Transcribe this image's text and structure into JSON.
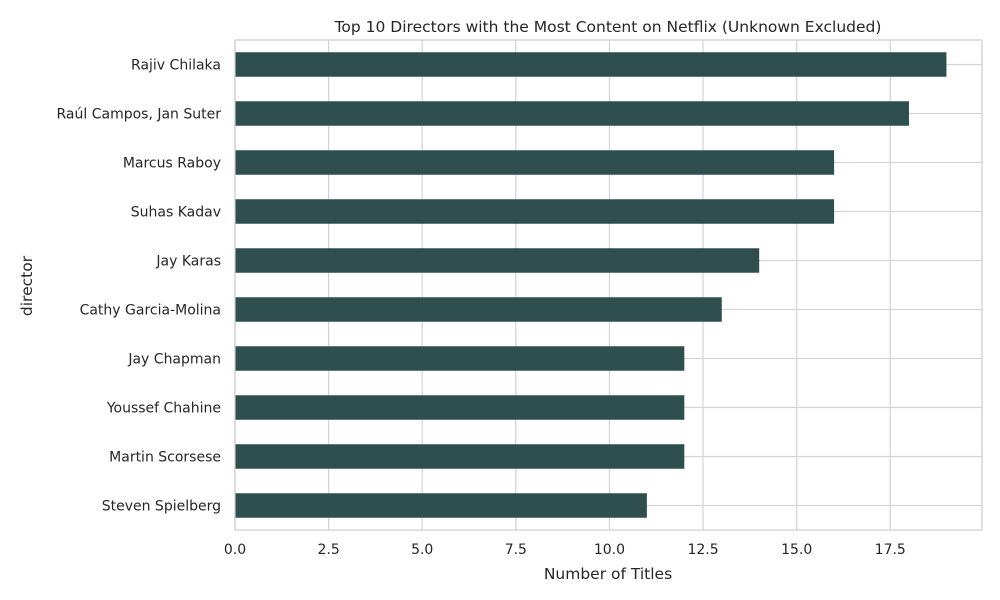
{
  "chart_data": {
    "type": "bar",
    "orientation": "horizontal",
    "title": "Top 10 Directors with the Most Content on Netflix (Unknown Excluded)",
    "xlabel": "Number of Titles",
    "ylabel": "director",
    "xlim": [
      0,
      19.95
    ],
    "xticks": [
      "0.0",
      "2.5",
      "5.0",
      "7.5",
      "10.0",
      "12.5",
      "15.0",
      "17.5"
    ],
    "grid": true,
    "bar_color": "#2f4f4f",
    "categories": [
      "Rajiv Chilaka",
      "Raúl Campos, Jan Suter",
      "Marcus Raboy",
      "Suhas Kadav",
      "Jay Karas",
      "Cathy Garcia-Molina",
      "Jay Chapman",
      "Youssef Chahine",
      "Martin Scorsese",
      "Steven Spielberg"
    ],
    "values": [
      19,
      18,
      16,
      16,
      14,
      13,
      12,
      12,
      12,
      11
    ]
  }
}
